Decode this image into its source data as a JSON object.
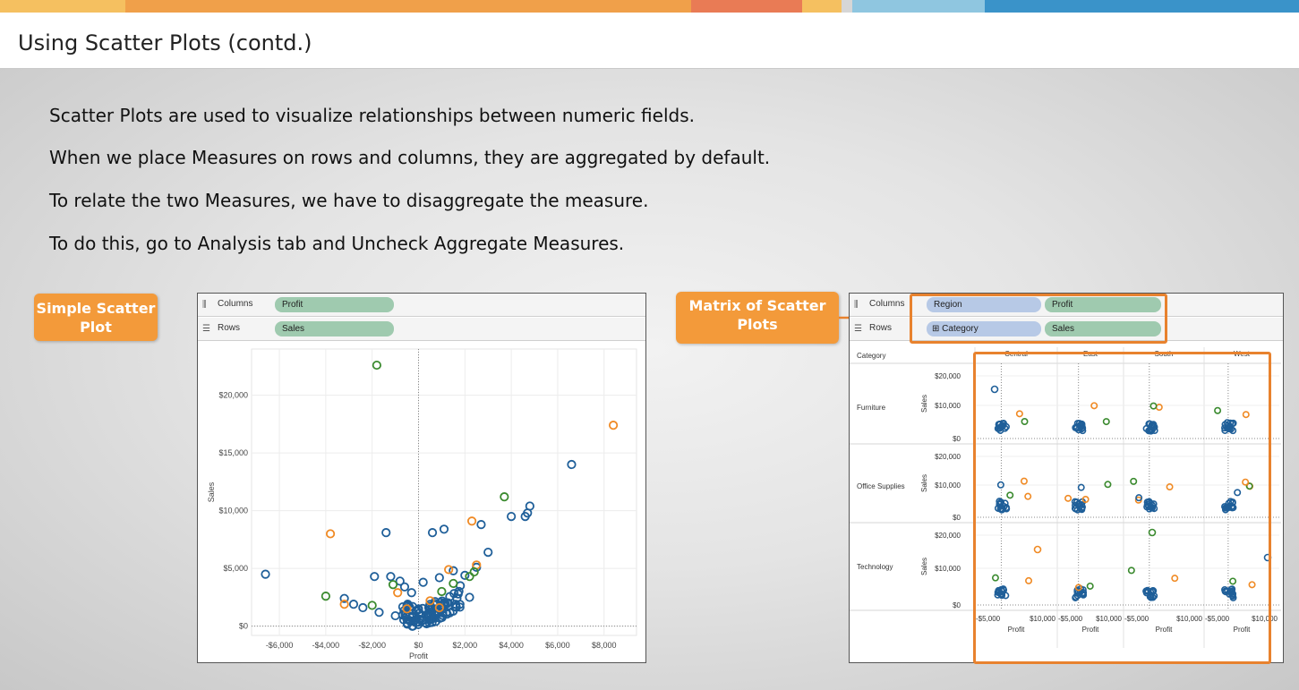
{
  "slide": {
    "title": "Using Scatter Plots (contd.)",
    "bullets": [
      "Scatter Plots are used to visualize relationships between numeric fields.",
      "When we place Measures on rows and columns, they are aggregated by default.",
      "To relate the two Measures, we have to disaggregate the measure.",
      "To do this, go to Analysis tab and Uncheck Aggregate Measures."
    ],
    "callout_simple": "Simple Scatter Plot",
    "callout_matrix": "Matrix of Scatter Plots"
  },
  "colors": {
    "accent_orange": "#f39a3a",
    "top_bar": [
      "#f5c060",
      "#f0a04a",
      "#e97b55",
      "#f5c060",
      "#8fc6e0",
      "#3a93c9"
    ],
    "series_blue": "#1f5f99",
    "series_orange": "#f08a24",
    "series_green": "#3a8a2e"
  },
  "simple_panel": {
    "columns_label": "Columns",
    "rows_label": "Rows",
    "columns_pill": "Profit",
    "rows_pill": "Sales",
    "icon_columns": "columns-shelf-icon",
    "icon_rows": "rows-shelf-icon"
  },
  "matrix_panel": {
    "columns_label": "Columns",
    "rows_label": "Rows",
    "columns_pills": [
      "Region",
      "Profit"
    ],
    "rows_pills": [
      "Category",
      "Sales"
    ],
    "expand_glyph": "⊞",
    "header_region": "Region",
    "header_category": "Category",
    "regions": [
      "Central",
      "East",
      "South",
      "West"
    ],
    "categories": [
      "Furniture",
      "Office Supplies",
      "Technology"
    ],
    "y_ticks": [
      "$20,000",
      "$10,000",
      "$0"
    ],
    "row_axis_label": "Sales",
    "x_ticks_left": "-$5,000",
    "x_ticks_right": "$10,000",
    "x_label": "Profit"
  },
  "chart_data": {
    "type": "scatter",
    "xlabel": "Profit",
    "ylabel": "Sales",
    "xlim": [
      -7200,
      9400
    ],
    "ylim": [
      -800,
      24000
    ],
    "x_ticks": [
      "-$6,000",
      "-$4,000",
      "-$2,000",
      "$0",
      "$2,000",
      "$4,000",
      "$6,000",
      "$8,000"
    ],
    "x_tick_values": [
      -6000,
      -4000,
      -2000,
      0,
      2000,
      4000,
      6000,
      8000
    ],
    "y_ticks": [
      "$0",
      "$5,000",
      "$10,000",
      "$15,000",
      "$20,000"
    ],
    "y_tick_values": [
      0,
      5000,
      10000,
      15000,
      20000
    ],
    "grid": true,
    "series": [
      {
        "color": "#1f5f99",
        "points": [
          [
            -6600,
            4500
          ],
          [
            -1900,
            4300
          ],
          [
            -1400,
            8100
          ],
          [
            -1200,
            4300
          ],
          [
            -800,
            3900
          ],
          [
            -600,
            3400
          ],
          [
            -300,
            2900
          ],
          [
            0,
            1500
          ],
          [
            200,
            3800
          ],
          [
            600,
            8100
          ],
          [
            900,
            4200
          ],
          [
            1100,
            8400
          ],
          [
            1500,
            4800
          ],
          [
            1800,
            3500
          ],
          [
            2000,
            4400
          ],
          [
            2500,
            5100
          ],
          [
            2700,
            8800
          ],
          [
            3000,
            6400
          ],
          [
            4000,
            9500
          ],
          [
            4600,
            9500
          ],
          [
            4700,
            9800
          ],
          [
            4800,
            10400
          ],
          [
            6600,
            14000
          ],
          [
            -2400,
            1600
          ],
          [
            -1700,
            1200
          ],
          [
            -1000,
            900
          ],
          [
            -500,
            600
          ],
          [
            -200,
            400
          ],
          [
            300,
            300
          ],
          [
            700,
            700
          ],
          [
            1200,
            1200
          ],
          [
            1600,
            1700
          ],
          [
            2200,
            2500
          ],
          [
            -3200,
            2400
          ],
          [
            -2800,
            1900
          ]
        ]
      },
      {
        "color": "#f08a24",
        "points": [
          [
            -3800,
            8000
          ],
          [
            -3200,
            1900
          ],
          [
            -900,
            2900
          ],
          [
            1300,
            4900
          ],
          [
            2300,
            9100
          ],
          [
            2500,
            5300
          ],
          [
            8400,
            17400
          ],
          [
            -500,
            1500
          ],
          [
            500,
            2200
          ],
          [
            900,
            1600
          ]
        ]
      },
      {
        "color": "#3a8a2e",
        "points": [
          [
            -4000,
            2600
          ],
          [
            -1800,
            22600
          ],
          [
            -1100,
            3600
          ],
          [
            1500,
            3700
          ],
          [
            3700,
            11200
          ],
          [
            2200,
            4300
          ],
          [
            2400,
            4700
          ],
          [
            -2000,
            1800
          ],
          [
            1000,
            3000
          ]
        ]
      }
    ]
  }
}
